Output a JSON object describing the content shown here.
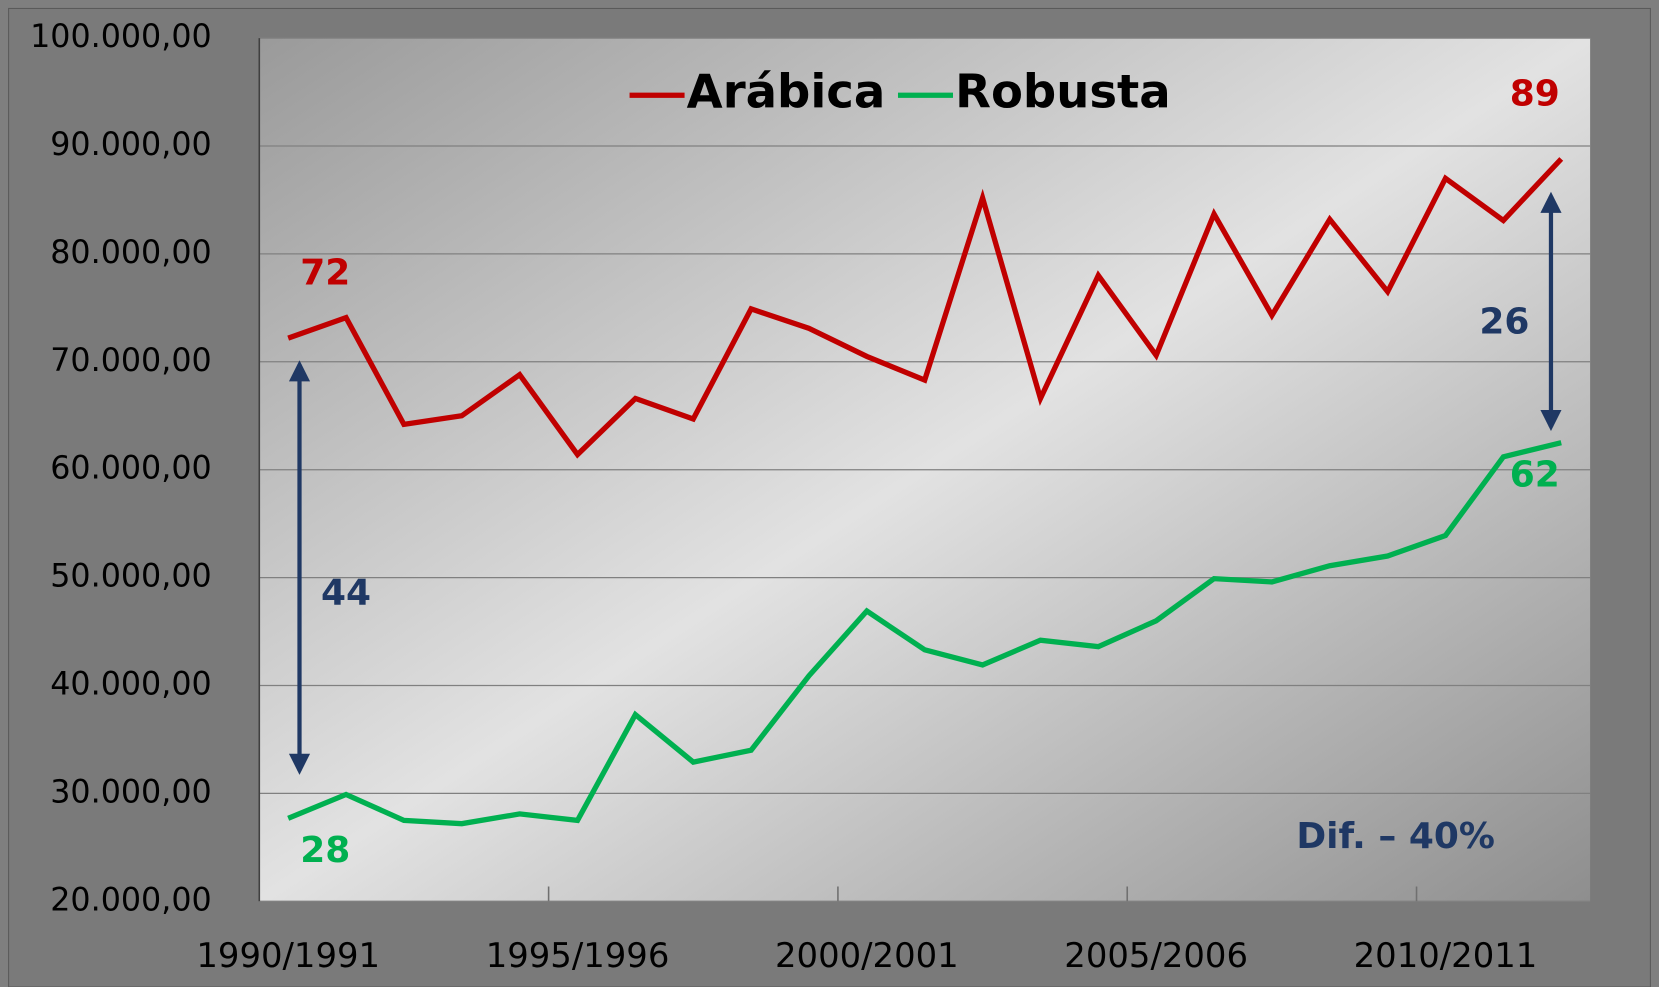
{
  "chart_data": {
    "type": "line",
    "categories": [
      "1990/1991",
      null,
      null,
      null,
      null,
      "1995/1996",
      null,
      null,
      null,
      null,
      "2000/2001",
      null,
      null,
      null,
      null,
      "2005/2006",
      null,
      null,
      null,
      null,
      "2010/2011",
      null,
      null
    ],
    "series": [
      {
        "name": "Arábica",
        "color": "#c00000",
        "values": [
          72200,
          74100,
          64200,
          65000,
          68800,
          61400,
          66600,
          64700,
          74900,
          73100,
          70500,
          68300,
          85200,
          66600,
          78000,
          70600,
          83700,
          74300,
          83200,
          76500,
          87000,
          83100,
          88800
        ],
        "value_labels": [
          "72",
          null,
          null,
          null,
          null,
          null,
          null,
          null,
          null,
          null,
          null,
          null,
          null,
          null,
          null,
          null,
          null,
          null,
          null,
          null,
          null,
          null,
          "89"
        ]
      },
      {
        "name": "Robusta",
        "color": "#00b050",
        "values": [
          27700,
          29900,
          27500,
          27200,
          28100,
          27500,
          37300,
          32900,
          34000,
          40900,
          46900,
          43300,
          41900,
          44200,
          43600,
          46000,
          49900,
          49600,
          51100,
          52000,
          53900,
          61200,
          62500
        ],
        "value_labels": [
          "28",
          null,
          null,
          null,
          null,
          null,
          null,
          null,
          null,
          null,
          null,
          null,
          null,
          null,
          null,
          null,
          null,
          null,
          null,
          null,
          null,
          null,
          "62"
        ]
      }
    ],
    "annotations": [
      "44",
      "26",
      "Dif. – 40%"
    ],
    "ylim": [
      20000,
      100000
    ],
    "yticks": [
      {
        "value": 20000,
        "label": "20.000,00"
      },
      {
        "value": 30000,
        "label": "30.000,00"
      },
      {
        "value": 40000,
        "label": "40.000,00"
      },
      {
        "value": 50000,
        "label": "50.000,00"
      },
      {
        "value": 60000,
        "label": "60.000,00"
      },
      {
        "value": 70000,
        "label": "70.000,00"
      },
      {
        "value": 80000,
        "label": "80.000,00"
      },
      {
        "value": 90000,
        "label": "90.000,00"
      },
      {
        "value": 100000,
        "label": "100.000,00"
      }
    ],
    "grid": true,
    "legend": "top"
  }
}
